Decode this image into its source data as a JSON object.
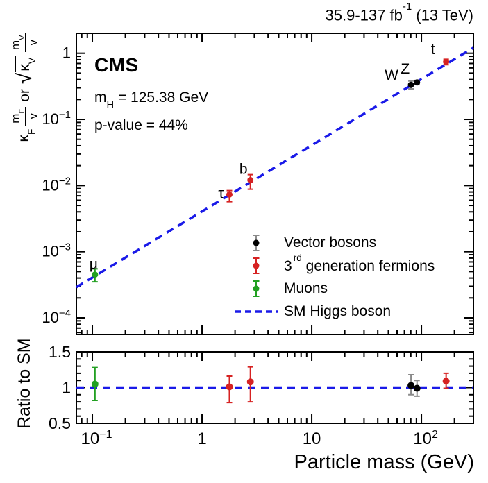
{
  "header": {
    "lumi_text": "35.9-137 fb",
    "lumi_sup": "-1",
    "lumi_rest": " (13 TeV)"
  },
  "annotations": {
    "experiment": "CMS",
    "mass_prefix": "m",
    "mass_sub": "H",
    "mass_rest": " = 125.38 GeV",
    "pvalue": "p-value = 44%"
  },
  "axis_titles": {
    "x": "Particle mass (GeV)",
    "ratio_y": "Ratio to SM",
    "main_y_text": "κ_F m_F/v or √κ_V m_V/v",
    "main_y": {
      "coeff1_base": "κ",
      "coeff1_sub": "F",
      "num1_base": "m",
      "num1_sub": "F",
      "den1": "v",
      "conjunction": "or",
      "radical": "√",
      "coeff2_base": "κ",
      "coeff2_sub": "V",
      "num2_base": "m",
      "num2_sub": "V",
      "den2": "v"
    }
  },
  "legend": {
    "items": [
      {
        "label": "Vector bosons",
        "marker": "circle",
        "marker_color": "#000000",
        "err_color": "#8a8a8a"
      },
      {
        "label_prefix": "3",
        "label_sup": "rd",
        "label_rest": " generation fermions",
        "marker": "circle",
        "marker_color": "#d62222",
        "err_color": "#d62222"
      },
      {
        "label": "Muons",
        "marker": "circle",
        "marker_color": "#22a022",
        "err_color": "#22a022"
      },
      {
        "label": "SM Higgs boson",
        "marker": "dashed-line",
        "marker_color": "#1a1ae8"
      }
    ]
  },
  "chart_data": {
    "type": "scatter",
    "title": "",
    "xlabel": "Particle mass (GeV)",
    "x_scale": "log",
    "xlim": [
      0.0715,
      298
    ],
    "x_ticks": [
      {
        "value": 0.1,
        "base": "10",
        "exp": "−1"
      },
      {
        "value": 1,
        "base": "1",
        "exp": ""
      },
      {
        "value": 10,
        "base": "10",
        "exp": ""
      },
      {
        "value": 100,
        "base": "10",
        "exp": "2"
      }
    ],
    "main_panel": {
      "ylabel": "κ_F m_F/v or √κ_V m_V/v",
      "y_scale": "log",
      "ylim": [
        5.6e-05,
        2.0
      ],
      "y_ticks": [
        {
          "value": 1,
          "base": "1",
          "exp": ""
        },
        {
          "value": 0.1,
          "base": "10",
          "exp": "−1"
        },
        {
          "value": 0.01,
          "base": "10",
          "exp": "−2"
        },
        {
          "value": 0.001,
          "base": "10",
          "exp": "−3"
        },
        {
          "value": 0.0001,
          "base": "10",
          "exp": "−4"
        }
      ],
      "sm_line": {
        "name": "SM Higgs boson",
        "vev": 246.22,
        "style": "dashed",
        "color": "#1a1ae8"
      }
    },
    "ratio_panel": {
      "ylabel": "Ratio to SM",
      "y_scale": "linear",
      "ylim": [
        0.5,
        1.5
      ],
      "y_ticks": [
        {
          "value": 1.5,
          "label": "1.5"
        },
        {
          "value": 1.0,
          "label": "1"
        },
        {
          "value": 0.5,
          "label": "0.5"
        }
      ],
      "minor_step": 0.1,
      "ref_line": {
        "value": 1.0,
        "style": "dashed",
        "color": "#1a1ae8"
      }
    },
    "groups": {
      "vector_bosons": {
        "name": "Vector bosons",
        "color": "#000000",
        "err_color": "#8a8a8a"
      },
      "fermions3": {
        "name": "3rd generation fermions",
        "color": "#d62222",
        "err_color": "#d62222"
      },
      "muons": {
        "name": "Muons",
        "color": "#22a022",
        "err_color": "#22a022"
      }
    },
    "points": [
      {
        "label": "μ",
        "group": "muons",
        "mass": 0.1057,
        "coupling": 0.00045,
        "coupling_err_up": 0.0001,
        "coupling_err_dn": 0.0001,
        "ratio": 1.05,
        "ratio_err_up": 0.23,
        "ratio_err_dn": 0.23
      },
      {
        "label": "τ",
        "group": "fermions3",
        "mass": 1.777,
        "coupling": 0.0073,
        "coupling_err_up": 0.0011,
        "coupling_err_dn": 0.0016,
        "ratio": 1.01,
        "ratio_err_up": 0.15,
        "ratio_err_dn": 0.22
      },
      {
        "label": "b",
        "group": "fermions3",
        "mass": 2.76,
        "coupling": 0.0121,
        "coupling_err_up": 0.0025,
        "coupling_err_dn": 0.0033,
        "ratio": 1.08,
        "ratio_err_up": 0.21,
        "ratio_err_dn": 0.28
      },
      {
        "label": "W",
        "group": "vector_bosons",
        "mass": 80.38,
        "coupling": 0.333,
        "coupling_err_up": 0.047,
        "coupling_err_dn": 0.043,
        "ratio": 1.03,
        "ratio_err_up": 0.15,
        "ratio_err_dn": 0.13
      },
      {
        "label": "Z",
        "group": "vector_bosons",
        "mass": 91.19,
        "coupling": 0.362,
        "coupling_err_up": 0.026,
        "coupling_err_dn": 0.026,
        "ratio": 0.99,
        "ratio_err_up": 0.11,
        "ratio_err_dn": 0.11
      },
      {
        "label": "t",
        "group": "fermions3",
        "mass": 168,
        "coupling": 0.74,
        "coupling_err_up": 0.07,
        "coupling_err_dn": 0.07,
        "ratio": 1.09,
        "ratio_err_up": 0.11,
        "ratio_err_dn": 0.1
      }
    ]
  }
}
